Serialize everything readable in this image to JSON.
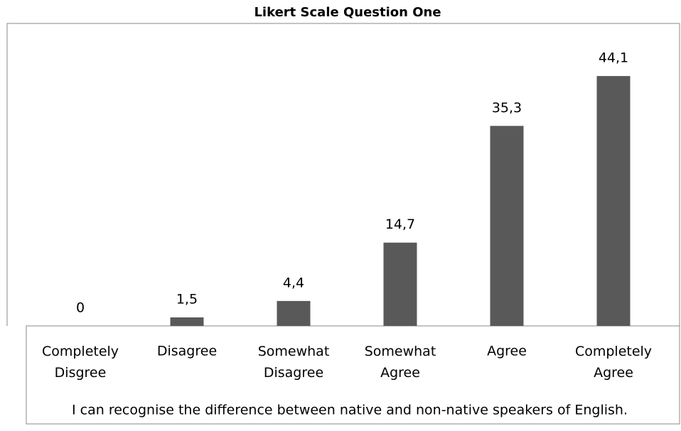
{
  "chart_data": {
    "type": "bar",
    "title": "Likert Scale Question One",
    "categories": [
      "Completely Disgree",
      "Disagree",
      "Somewhat Disagree",
      "Somewhat Agree",
      "Agree",
      "Completely Agree"
    ],
    "values": [
      0,
      1.5,
      4.4,
      14.7,
      35.3,
      44.1
    ],
    "value_labels": [
      "0",
      "1,5",
      "4,4",
      "14,7",
      "35,3",
      "44,1"
    ],
    "x_label": "I can recognise the difference between native and non-native speakers of English.",
    "color": "#595959",
    "ylim": [
      0,
      50
    ]
  }
}
